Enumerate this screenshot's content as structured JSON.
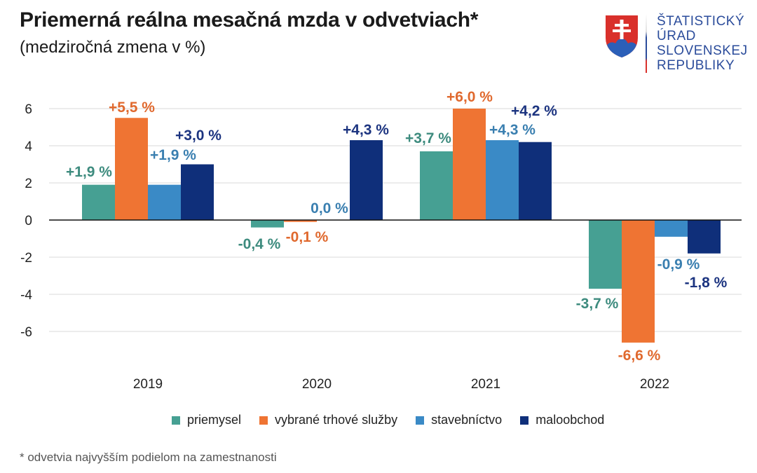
{
  "header": {
    "title": "Priemerná reálna mesačná mzda v odvetviach*",
    "subtitle": "(medziročná zmena v %)"
  },
  "logo": {
    "icon": "slovak-coat-of-arms-icon",
    "lines": [
      "ŠTATISTICKÝ",
      "ÚRAD",
      "SLOVENSKEJ",
      "REPUBLIKY"
    ]
  },
  "footnote": "* odvetvia najvyšším podielom na zamestnanosti",
  "chart_data": {
    "type": "bar",
    "title": "Priemerná reálna mesačná mzda v odvetviach*",
    "subtitle": "(medziročná zmena v %)",
    "xlabel": "",
    "ylabel": "",
    "categories": [
      "2019",
      "2020",
      "2021",
      "2022"
    ],
    "ylim": [
      -8,
      7
    ],
    "yticks": [
      6,
      4,
      2,
      0,
      -2,
      -4,
      -6
    ],
    "ytick_labels": [
      "6",
      "4",
      "2",
      "0",
      "-2",
      "-4",
      "-6"
    ],
    "grid": true,
    "legend_position": "bottom",
    "series": [
      {
        "name": "priemysel",
        "color": "#46a093",
        "values": [
          1.9,
          -0.4,
          3.7,
          -3.7
        ],
        "labels": [
          "+1,9 %",
          "-0,4 %",
          "+3,7 %",
          "-3,7 %"
        ]
      },
      {
        "name": "vybrané trhové služby",
        "color": "#ef7433",
        "values": [
          5.5,
          -0.1,
          6.0,
          -6.6
        ],
        "labels": [
          "+5,5 %",
          "-0,1 %",
          "+6,0 %",
          "-6,6 %"
        ]
      },
      {
        "name": "stavebníctvo",
        "color": "#3a8ac6",
        "values": [
          1.9,
          0.0,
          4.3,
          -0.9
        ],
        "labels": [
          "+1,9 %",
          "0,0 %",
          "+4,3 %",
          "-0,9 %"
        ]
      },
      {
        "name": "maloobchod",
        "color": "#0f2f7a",
        "values": [
          3.0,
          4.3,
          4.2,
          -1.8
        ],
        "labels": [
          "+3,0 %",
          "+4,3 %",
          "+4,2 %",
          "-1,8 %"
        ]
      }
    ],
    "label_colors": [
      "#3d8b7e",
      "#e0692e",
      "#3a7fb0",
      "#1c3480"
    ]
  }
}
